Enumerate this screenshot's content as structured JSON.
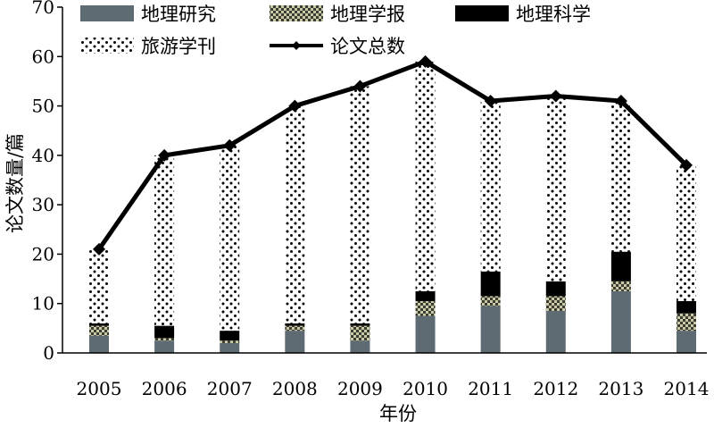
{
  "chart_data": {
    "type": "bar",
    "stacked": true,
    "title": "",
    "xlabel": "年份",
    "ylabel": "论文数量/篇",
    "ylim": [
      0,
      70
    ],
    "yticks": [
      0,
      10,
      20,
      30,
      40,
      50,
      60,
      70
    ],
    "grid": false,
    "legend_position": "top",
    "categories": [
      "2005",
      "2006",
      "2007",
      "2008",
      "2009",
      "2010",
      "2011",
      "2012",
      "2013",
      "2014"
    ],
    "series": [
      {
        "name": "地理研究",
        "kind": "bar",
        "pattern": "solid-gray",
        "color": "#5f6b73",
        "values": [
          3.5,
          2.5,
          2,
          4.5,
          2.5,
          7.5,
          9.5,
          8.5,
          12.5,
          4.5
        ]
      },
      {
        "name": "地理学报",
        "kind": "bar",
        "pattern": "checker",
        "color": "#8a8a6e",
        "values": [
          2,
          0.5,
          0.5,
          1,
          3,
          3,
          2,
          3,
          2,
          3.5
        ]
      },
      {
        "name": "地理科学",
        "kind": "bar",
        "pattern": "solid-black",
        "color": "#000000",
        "values": [
          0.5,
          2.5,
          2,
          0.5,
          0.5,
          2,
          5,
          3,
          6,
          2.5
        ]
      },
      {
        "name": "旅游学刊",
        "kind": "bar",
        "pattern": "dots",
        "color": "#000000",
        "values": [
          15,
          34.5,
          37.5,
          44,
          48,
          46.5,
          34.5,
          37.5,
          30.5,
          27.5
        ]
      },
      {
        "name": "论文总数",
        "kind": "line",
        "color": "#000000",
        "values": [
          21,
          40,
          42,
          50,
          54,
          59,
          51,
          52,
          51,
          38
        ]
      }
    ]
  }
}
